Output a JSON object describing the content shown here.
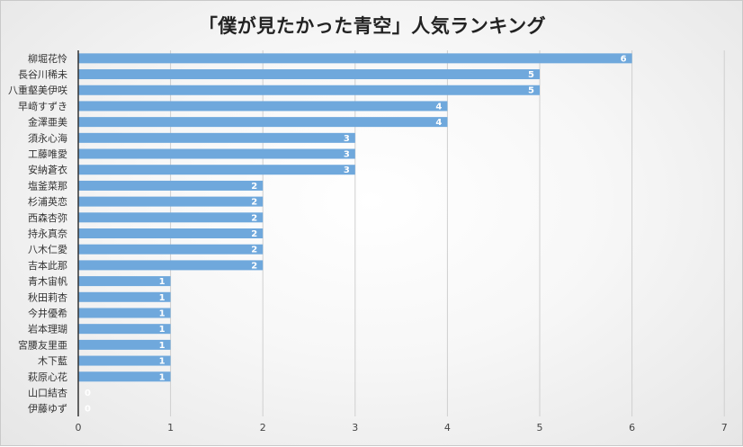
{
  "chart_data": {
    "type": "bar",
    "orientation": "horizontal",
    "title": "「僕が見たかった青空」人気ランキング",
    "categories": [
      "柳堀花怜",
      "長谷川稀未",
      "八重壑美伊咲",
      "早﨑すずき",
      "金澤亜美",
      "須永心海",
      "工藤唯愛",
      "安納蒼衣",
      "塩釜菜那",
      "杉浦英恋",
      "西森杏弥",
      "持永真奈",
      "八木仁愛",
      "吉本此那",
      "青木宙帆",
      "秋田莉杏",
      "今井優希",
      "岩本理瑚",
      "宮腰友里亜",
      "木下藍",
      "萩原心花",
      "山口結杏",
      "伊藤ゆず"
    ],
    "values": [
      6,
      5,
      5,
      4,
      4,
      3,
      3,
      3,
      2,
      2,
      2,
      2,
      2,
      2,
      1,
      1,
      1,
      1,
      1,
      1,
      1,
      0,
      0
    ],
    "xlim": [
      0,
      7
    ],
    "xticks": [
      "0",
      "1",
      "2",
      "3",
      "4",
      "5",
      "6",
      "7"
    ],
    "grid": "vertical",
    "data_labels": true,
    "bar_color": "#6fa8dc"
  }
}
